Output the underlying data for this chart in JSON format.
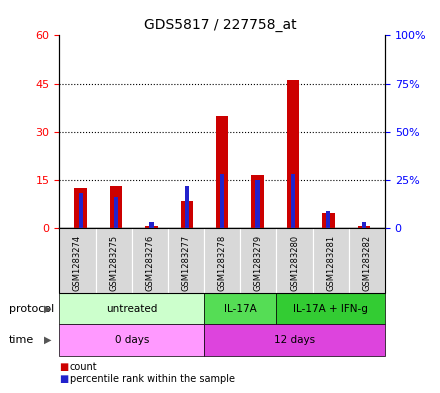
{
  "title": "GDS5817 / 227758_at",
  "samples": [
    "GSM1283274",
    "GSM1283275",
    "GSM1283276",
    "GSM1283277",
    "GSM1283278",
    "GSM1283279",
    "GSM1283280",
    "GSM1283281",
    "GSM1283282"
  ],
  "count_values": [
    12.5,
    13.0,
    0.5,
    8.5,
    35.0,
    16.5,
    46.0,
    4.5,
    0.5
  ],
  "percentile_values": [
    18,
    16,
    3,
    22,
    28,
    25,
    28,
    9,
    3
  ],
  "ylim_left": [
    0,
    60
  ],
  "ylim_right": [
    0,
    100
  ],
  "yticks_left": [
    0,
    15,
    30,
    45,
    60
  ],
  "yticks_right": [
    0,
    25,
    50,
    75,
    100
  ],
  "bar_color": "#cc0000",
  "percentile_color": "#2222cc",
  "protocol_groups": [
    {
      "label": "untreated",
      "start": 0,
      "end": 4,
      "color": "#ccffcc"
    },
    {
      "label": "IL-17A",
      "start": 4,
      "end": 6,
      "color": "#55dd55"
    },
    {
      "label": "IL-17A + IFN-g",
      "start": 6,
      "end": 9,
      "color": "#33cc33"
    }
  ],
  "time_groups": [
    {
      "label": "0 days",
      "start": 0,
      "end": 4,
      "color": "#ff99ff"
    },
    {
      "label": "12 days",
      "start": 4,
      "end": 9,
      "color": "#dd44dd"
    }
  ],
  "bar_width": 0.35,
  "percentile_bar_width": 0.12,
  "background_color": "#ffffff",
  "plot_bg_color": "#ffffff",
  "sample_box_color": "#d8d8d8",
  "label_protocol": "protocol",
  "label_time": "time"
}
